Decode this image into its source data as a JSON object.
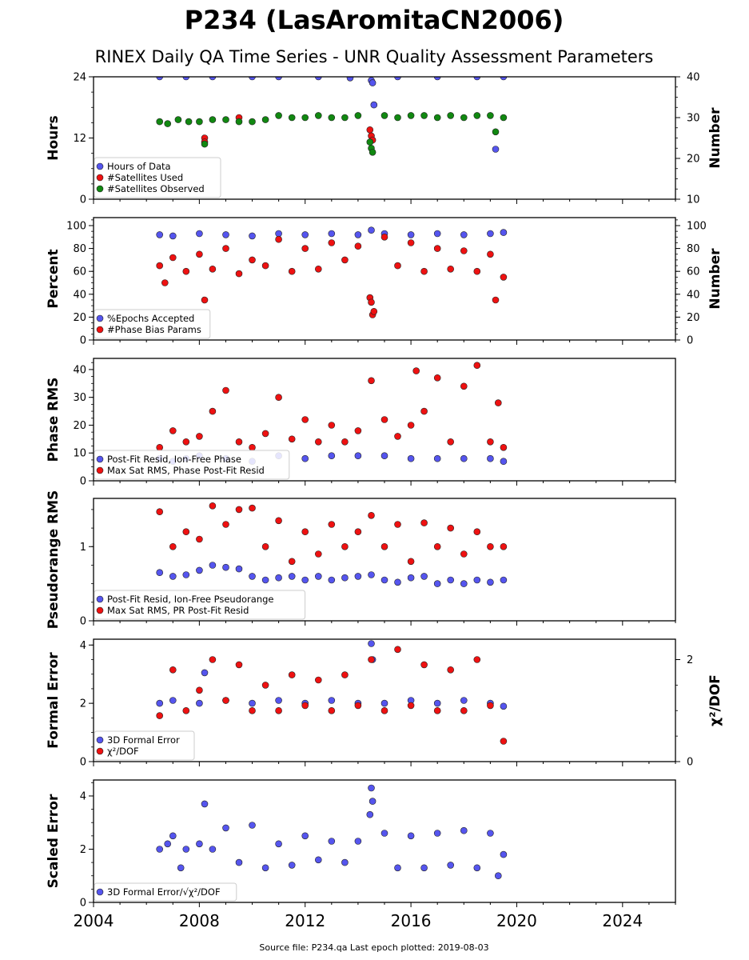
{
  "title": "P234 (LasAromitaCN2006)",
  "subtitle": "RINEX Daily QA Time Series - UNR Quality Assessment Parameters",
  "source_note": "Source file: P234.qa Last epoch plotted: 2019-08-03",
  "x_axis": {
    "min": 2004,
    "max": 2026,
    "ticks": [
      2004,
      2008,
      2012,
      2016,
      2020,
      2024
    ]
  },
  "colors": {
    "blue": "#5555ee",
    "red": "#ee1111",
    "green": "#118811"
  },
  "chart_data": [
    {
      "type": "scatter",
      "ylabel": "Hours",
      "ylim": [
        0,
        24
      ],
      "yticks": [
        0,
        12,
        24
      ],
      "right_axis": {
        "label": "Number",
        "ylim": [
          10,
          40
        ],
        "ticks": [
          10,
          20,
          30,
          40
        ]
      },
      "legend": "bottom-left",
      "series": [
        {
          "name": "Hours of Data",
          "color": "#5555ee",
          "axis": "left",
          "x": [
            2006.5,
            2007.5,
            2008.5,
            2010.0,
            2011.0,
            2012.5,
            2013.7,
            2014.5,
            2014.55,
            2014.6,
            2015.5,
            2017.0,
            2018.5,
            2019.2,
            2019.5
          ],
          "y": [
            24,
            24,
            24,
            24,
            24,
            24,
            23.8,
            23.3,
            22.8,
            18.5,
            24,
            24,
            24,
            9.8,
            24
          ]
        },
        {
          "name": "#Satellites Used",
          "color": "#ee1111",
          "axis": "right",
          "x": [
            2008.2,
            2008.2,
            2014.45,
            2014.5,
            2014.55,
            2009.5
          ],
          "y": [
            25,
            24,
            27,
            25.5,
            24.5,
            30
          ]
        },
        {
          "name": "#Satellites Observed",
          "color": "#118811",
          "axis": "right",
          "x": [
            2006.5,
            2006.8,
            2007.2,
            2007.6,
            2008.0,
            2008.2,
            2008.5,
            2009.0,
            2009.5,
            2010.0,
            2010.5,
            2011.0,
            2011.5,
            2012.0,
            2012.5,
            2013.0,
            2013.5,
            2014.0,
            2014.45,
            2014.5,
            2014.55,
            2015.0,
            2015.5,
            2016.0,
            2016.5,
            2017.0,
            2017.5,
            2018.0,
            2018.5,
            2019.0,
            2019.2,
            2019.5
          ],
          "y": [
            29,
            28.5,
            29.5,
            29,
            29,
            23.5,
            29.5,
            29.5,
            29,
            29,
            29.5,
            30.5,
            30,
            30,
            30.5,
            30,
            30,
            30.5,
            24,
            22.5,
            21.5,
            30.5,
            30,
            30.5,
            30.5,
            30,
            30.5,
            30,
            30.5,
            30.5,
            26.5,
            30
          ]
        }
      ]
    },
    {
      "type": "scatter",
      "ylabel": "Percent",
      "ylim": [
        0,
        107
      ],
      "yticks": [
        0,
        20,
        40,
        60,
        80,
        100
      ],
      "right_axis": {
        "label": "Number",
        "ylim": [
          0,
          107
        ],
        "ticks": [
          0,
          20,
          40,
          60,
          80,
          100
        ]
      },
      "legend": "bottom-left",
      "series": [
        {
          "name": "%Epochs Accepted",
          "color": "#5555ee",
          "axis": "left",
          "x": [
            2006.5,
            2007.0,
            2008.0,
            2009.0,
            2010.0,
            2011.0,
            2012.0,
            2013.0,
            2014.0,
            2014.5,
            2015.0,
            2016.0,
            2017.0,
            2018.0,
            2019.0,
            2019.5
          ],
          "y": [
            92,
            91,
            93,
            92,
            91,
            93,
            92,
            93,
            92,
            96,
            93,
            92,
            93,
            92,
            93,
            94
          ]
        },
        {
          "name": "#Phase Bias Params",
          "color": "#ee1111",
          "axis": "right",
          "x": [
            2006.5,
            2006.7,
            2007.0,
            2007.5,
            2008.0,
            2008.2,
            2008.5,
            2009.0,
            2009.5,
            2010.0,
            2010.5,
            2011.0,
            2011.5,
            2012.0,
            2012.5,
            2013.0,
            2013.5,
            2014.0,
            2014.45,
            2014.5,
            2014.55,
            2014.6,
            2015.0,
            2015.5,
            2016.0,
            2016.5,
            2017.0,
            2017.5,
            2018.0,
            2018.5,
            2019.0,
            2019.2,
            2019.5
          ],
          "y": [
            65,
            50,
            72,
            60,
            75,
            35,
            62,
            80,
            58,
            70,
            65,
            88,
            60,
            80,
            62,
            85,
            70,
            82,
            37,
            33,
            22,
            25,
            90,
            65,
            85,
            60,
            80,
            62,
            78,
            60,
            75,
            35,
            55
          ]
        }
      ]
    },
    {
      "type": "scatter",
      "ylabel": "Phase RMS",
      "ylim": [
        0,
        44
      ],
      "yticks": [
        0,
        10,
        20,
        30,
        40
      ],
      "legend": "bottom-left",
      "series": [
        {
          "name": "Post-Fit Resid, Ion-Free Phase",
          "color": "#5555ee",
          "x": [
            2006.5,
            2007.0,
            2007.5,
            2008.0,
            2009.0,
            2010.0,
            2011.0,
            2012.0,
            2013.0,
            2014.0,
            2015.0,
            2016.0,
            2017.0,
            2018.0,
            2019.0,
            2019.5
          ],
          "y": [
            8,
            7,
            8,
            9,
            8,
            7,
            9,
            8,
            9,
            9,
            9,
            8,
            8,
            8,
            8,
            7
          ]
        },
        {
          "name": "Max Sat RMS, Phase Post-Fit Resid",
          "color": "#ee1111",
          "x": [
            2006.5,
            2007.0,
            2007.5,
            2008.0,
            2008.5,
            2009.0,
            2009.5,
            2010.0,
            2010.5,
            2011.0,
            2011.5,
            2012.0,
            2012.5,
            2013.0,
            2013.5,
            2014.0,
            2014.5,
            2015.0,
            2015.5,
            2016.0,
            2016.2,
            2016.5,
            2017.0,
            2017.5,
            2018.0,
            2018.5,
            2019.0,
            2019.3,
            2019.5
          ],
          "y": [
            12,
            18,
            14,
            16,
            25,
            32.5,
            14,
            12,
            17,
            30,
            15,
            22,
            14,
            20,
            14,
            18,
            36,
            22,
            16,
            20,
            39.5,
            25,
            37,
            14,
            34,
            41.5,
            14,
            28,
            12
          ]
        }
      ]
    },
    {
      "type": "scatter",
      "ylabel": "Pseudorange RMS",
      "ylim": [
        0,
        1.65
      ],
      "yticks": [
        0,
        1
      ],
      "legend": "bottom-left",
      "series": [
        {
          "name": "Post-Fit Resid, Ion-Free Pseudorange",
          "color": "#5555ee",
          "x": [
            2006.5,
            2007.0,
            2007.5,
            2008.0,
            2008.5,
            2009.0,
            2009.5,
            2010.0,
            2010.5,
            2011.0,
            2011.5,
            2012.0,
            2012.5,
            2013.0,
            2013.5,
            2014.0,
            2014.5,
            2015.0,
            2015.5,
            2016.0,
            2016.5,
            2017.0,
            2017.5,
            2018.0,
            2018.5,
            2019.0,
            2019.5
          ],
          "y": [
            0.65,
            0.6,
            0.62,
            0.68,
            0.75,
            0.72,
            0.7,
            0.6,
            0.55,
            0.58,
            0.6,
            0.55,
            0.6,
            0.55,
            0.58,
            0.6,
            0.62,
            0.55,
            0.52,
            0.58,
            0.6,
            0.5,
            0.55,
            0.5,
            0.55,
            0.52,
            0.55
          ]
        },
        {
          "name": "Max Sat RMS, PR Post-Fit Resid",
          "color": "#ee1111",
          "x": [
            2006.5,
            2007.0,
            2007.5,
            2008.0,
            2008.5,
            2009.0,
            2009.5,
            2010.0,
            2010.5,
            2011.0,
            2011.5,
            2012.0,
            2012.5,
            2013.0,
            2013.5,
            2014.0,
            2014.5,
            2015.0,
            2015.5,
            2016.0,
            2016.5,
            2017.0,
            2017.5,
            2018.0,
            2018.5,
            2019.0,
            2019.5
          ],
          "y": [
            1.47,
            1.0,
            1.2,
            1.1,
            1.55,
            1.3,
            1.5,
            1.52,
            1.0,
            1.35,
            0.8,
            1.2,
            0.9,
            1.3,
            1.0,
            1.2,
            1.42,
            1.0,
            1.3,
            0.8,
            1.32,
            1.0,
            1.25,
            0.9,
            1.2,
            1.0,
            1.0
          ]
        }
      ]
    },
    {
      "type": "scatter",
      "ylabel": "Formal Error",
      "ylim": [
        0,
        4.2
      ],
      "yticks": [
        0,
        2,
        4
      ],
      "right_axis": {
        "label": "χ²/DOF",
        "ylim": [
          0,
          2.4
        ],
        "ticks": [
          0,
          2
        ]
      },
      "legend": "bottom-left",
      "series": [
        {
          "name": "3D Formal Error",
          "color": "#5555ee",
          "axis": "left",
          "x": [
            2006.5,
            2007.0,
            2008.0,
            2008.2,
            2009.0,
            2010.0,
            2011.0,
            2012.0,
            2013.0,
            2014.0,
            2014.5,
            2014.55,
            2015.0,
            2016.0,
            2017.0,
            2018.0,
            2019.0,
            2019.5
          ],
          "y": [
            2.0,
            2.1,
            2.0,
            3.05,
            2.1,
            2.0,
            2.1,
            2.0,
            2.1,
            2.0,
            4.05,
            3.5,
            2.0,
            2.1,
            2.0,
            2.1,
            2.0,
            1.9
          ]
        },
        {
          "name": "χ²/DOF",
          "color": "#ee1111",
          "axis": "right",
          "x": [
            2006.5,
            2007.0,
            2007.5,
            2008.0,
            2008.5,
            2009.0,
            2009.5,
            2010.0,
            2010.5,
            2011.0,
            2011.5,
            2012.0,
            2012.5,
            2013.0,
            2013.5,
            2014.0,
            2014.5,
            2015.0,
            2015.5,
            2016.0,
            2016.5,
            2017.0,
            2017.5,
            2018.0,
            2018.5,
            2019.0,
            2019.5
          ],
          "y": [
            0.9,
            1.8,
            1.0,
            1.4,
            2.0,
            1.2,
            1.9,
            1.0,
            1.5,
            1.0,
            1.7,
            1.1,
            1.6,
            1.0,
            1.7,
            1.1,
            2.0,
            1.0,
            2.2,
            1.1,
            1.9,
            1.0,
            1.8,
            1.0,
            2.0,
            1.1,
            0.4
          ]
        }
      ]
    },
    {
      "type": "scatter",
      "ylabel": "Scaled Error",
      "ylim": [
        0,
        4.6
      ],
      "yticks": [
        0,
        2,
        4
      ],
      "legend": "bottom-left",
      "series": [
        {
          "name": "3D Formal Error/√χ²/DOF",
          "color": "#5555ee",
          "x": [
            2006.5,
            2006.8,
            2007.0,
            2007.3,
            2007.5,
            2008.0,
            2008.2,
            2008.5,
            2009.0,
            2009.5,
            2010.0,
            2010.5,
            2011.0,
            2011.5,
            2012.0,
            2012.5,
            2013.0,
            2013.5,
            2014.0,
            2014.45,
            2014.5,
            2014.55,
            2015.0,
            2015.5,
            2016.0,
            2016.5,
            2017.0,
            2017.5,
            2018.0,
            2018.5,
            2019.0,
            2019.3,
            2019.5
          ],
          "y": [
            2.0,
            2.2,
            2.5,
            1.3,
            2.0,
            2.2,
            3.7,
            2.0,
            2.8,
            1.5,
            2.9,
            1.3,
            2.2,
            1.4,
            2.5,
            1.6,
            2.3,
            1.5,
            2.3,
            3.3,
            4.3,
            3.8,
            2.6,
            1.3,
            2.5,
            1.3,
            2.6,
            1.4,
            2.7,
            1.3,
            2.6,
            1.0,
            1.8
          ]
        }
      ]
    }
  ]
}
